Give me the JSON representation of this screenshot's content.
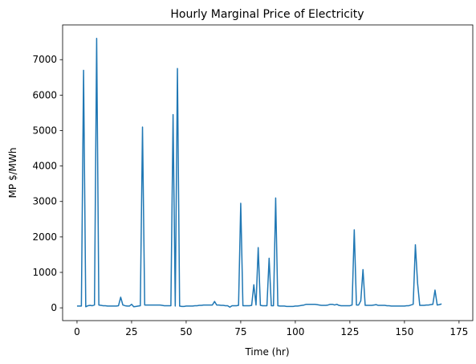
{
  "chart_data": {
    "type": "line",
    "title": "Hourly Marginal Price of Electricity",
    "xlabel": "Time (hr)",
    "ylabel": "MP $/MWh",
    "x": [
      0,
      1,
      2,
      3,
      4,
      5,
      6,
      7,
      8,
      9,
      10,
      11,
      12,
      13,
      14,
      15,
      16,
      17,
      18,
      19,
      20,
      21,
      22,
      23,
      24,
      25,
      26,
      27,
      28,
      29,
      30,
      31,
      32,
      33,
      34,
      35,
      36,
      37,
      38,
      39,
      40,
      41,
      42,
      43,
      44,
      45,
      46,
      47,
      48,
      49,
      50,
      51,
      52,
      53,
      54,
      55,
      56,
      57,
      58,
      59,
      60,
      61,
      62,
      63,
      64,
      65,
      66,
      67,
      68,
      69,
      70,
      71,
      72,
      73,
      74,
      75,
      76,
      77,
      78,
      79,
      80,
      81,
      82,
      83,
      84,
      85,
      86,
      87,
      88,
      89,
      90,
      91,
      92,
      93,
      94,
      95,
      96,
      97,
      98,
      99,
      100,
      101,
      102,
      103,
      104,
      105,
      106,
      107,
      108,
      109,
      110,
      111,
      112,
      113,
      114,
      115,
      116,
      117,
      118,
      119,
      120,
      121,
      122,
      123,
      124,
      125,
      126,
      127,
      128,
      129,
      130,
      131,
      132,
      133,
      134,
      135,
      136,
      137,
      138,
      139,
      140,
      141,
      142,
      143,
      144,
      145,
      146,
      147,
      148,
      149,
      150,
      151,
      152,
      153,
      154,
      155,
      156,
      157,
      158,
      159,
      160,
      161,
      162,
      163,
      164,
      165,
      166,
      167
    ],
    "series": [
      {
        "name": "MP",
        "color": "#1f77b4",
        "values": [
          50,
          50,
          50,
          6700,
          30,
          60,
          70,
          60,
          80,
          7600,
          80,
          70,
          60,
          60,
          50,
          50,
          50,
          50,
          50,
          60,
          300,
          80,
          60,
          50,
          50,
          100,
          30,
          40,
          50,
          60,
          5100,
          80,
          80,
          80,
          80,
          80,
          80,
          80,
          80,
          70,
          60,
          60,
          60,
          60,
          5450,
          50,
          6750,
          50,
          40,
          40,
          50,
          50,
          50,
          50,
          60,
          60,
          70,
          70,
          80,
          80,
          80,
          80,
          80,
          180,
          80,
          80,
          70,
          70,
          60,
          60,
          20,
          60,
          60,
          60,
          70,
          2950,
          60,
          60,
          60,
          60,
          70,
          650,
          80,
          1700,
          70,
          60,
          60,
          60,
          1400,
          60,
          60,
          3100,
          60,
          50,
          50,
          50,
          40,
          40,
          40,
          40,
          50,
          50,
          60,
          70,
          80,
          100,
          100,
          100,
          100,
          100,
          90,
          80,
          70,
          70,
          70,
          80,
          100,
          100,
          80,
          100,
          70,
          60,
          60,
          60,
          60,
          60,
          80,
          2200,
          80,
          80,
          200,
          1080,
          70,
          70,
          70,
          70,
          80,
          90,
          70,
          70,
          70,
          70,
          60,
          60,
          50,
          50,
          50,
          50,
          50,
          50,
          50,
          60,
          60,
          80,
          100,
          1780,
          700,
          70,
          70,
          70,
          80,
          80,
          90,
          100,
          500,
          80,
          90,
          110
        ]
      }
    ],
    "xlim": [
      -6.6,
      181.3
    ],
    "xticks": [
      0,
      25,
      50,
      75,
      100,
      125,
      150,
      175
    ],
    "ylim": [
      -360,
      7980
    ],
    "yticks": [
      0,
      1000,
      2000,
      3000,
      4000,
      5000,
      6000,
      7000
    ]
  }
}
